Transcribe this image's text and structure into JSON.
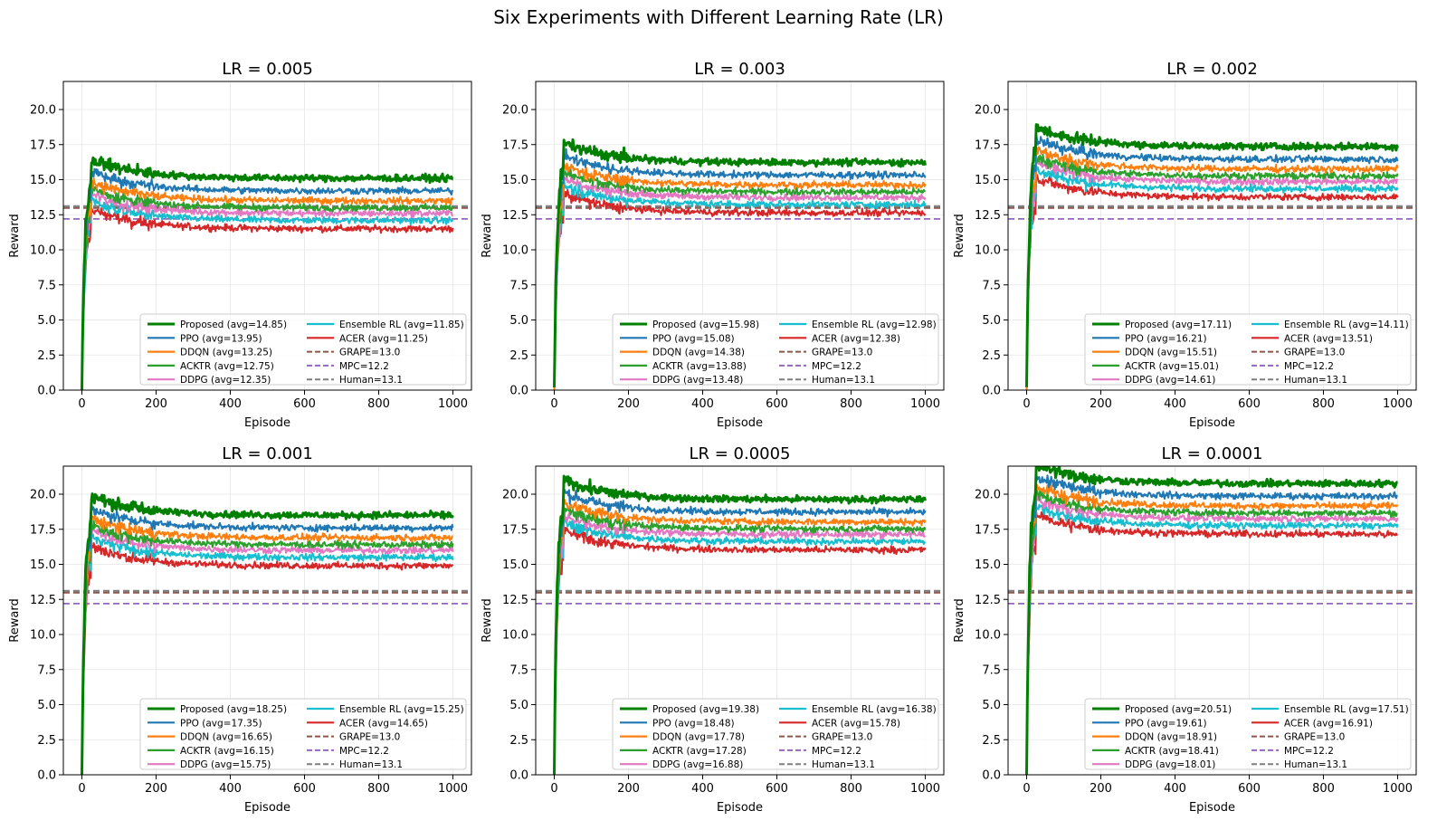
{
  "suptitle": "Six Experiments with Different Learning Rate (LR)",
  "colors": {
    "Proposed": "#008000",
    "PPO": "#1f77b4",
    "DDQN": "#ff7f0e",
    "ACKTR": "#2ca02c",
    "DDPG": "#e377c2",
    "Ensemble RL": "#17becf",
    "ACER": "#d62728",
    "GRAPE": "#8c564b",
    "MPC": "#9467bd",
    "Human": "#7f7f7f"
  },
  "chart_data": [
    {
      "type": "line",
      "title": "LR = 0.005",
      "xlabel": "Episode",
      "ylabel": "Reward",
      "xlim": [
        -50,
        1050
      ],
      "ylim": [
        0,
        22
      ],
      "xticks": [
        "0",
        "200",
        "400",
        "600",
        "800",
        "1000"
      ],
      "yticks": [
        "0.0",
        "2.5",
        "5.0",
        "7.5",
        "10.0",
        "12.5",
        "15.0",
        "17.5",
        "20.0"
      ],
      "grid": true,
      "legend_location": "lower-right",
      "series": [
        {
          "name": "Proposed",
          "label": "Proposed (avg=14.85)",
          "avg": 14.85
        },
        {
          "name": "PPO",
          "label": "PPO (avg=13.95)",
          "avg": 13.95
        },
        {
          "name": "DDQN",
          "label": "DDQN (avg=13.25)",
          "avg": 13.25
        },
        {
          "name": "ACKTR",
          "label": "ACKTR (avg=12.75)",
          "avg": 12.75
        },
        {
          "name": "DDPG",
          "label": "DDPG (avg=12.35)",
          "avg": 12.35
        },
        {
          "name": "Ensemble RL",
          "label": "Ensemble RL (avg=11.85)",
          "avg": 11.85
        },
        {
          "name": "ACER",
          "label": "ACER (avg=11.25)",
          "avg": 11.25
        }
      ],
      "baselines": [
        {
          "name": "GRAPE",
          "label": "GRAPE=13.0",
          "value": 13.0
        },
        {
          "name": "MPC",
          "label": "MPC=12.2",
          "value": 12.2
        },
        {
          "name": "Human",
          "label": "Human=13.1",
          "value": 13.1
        }
      ]
    },
    {
      "type": "line",
      "title": "LR = 0.003",
      "xlabel": "Episode",
      "ylabel": "Reward",
      "xlim": [
        -50,
        1050
      ],
      "ylim": [
        0,
        22
      ],
      "xticks": [
        "0",
        "200",
        "400",
        "600",
        "800",
        "1000"
      ],
      "yticks": [
        "0.0",
        "2.5",
        "5.0",
        "7.5",
        "10.0",
        "12.5",
        "15.0",
        "17.5",
        "20.0"
      ],
      "grid": true,
      "legend_location": "lower-right",
      "series": [
        {
          "name": "Proposed",
          "label": "Proposed (avg=15.98)",
          "avg": 15.98
        },
        {
          "name": "PPO",
          "label": "PPO (avg=15.08)",
          "avg": 15.08
        },
        {
          "name": "DDQN",
          "label": "DDQN (avg=14.38)",
          "avg": 14.38
        },
        {
          "name": "ACKTR",
          "label": "ACKTR (avg=13.88)",
          "avg": 13.88
        },
        {
          "name": "DDPG",
          "label": "DDPG (avg=13.48)",
          "avg": 13.48
        },
        {
          "name": "Ensemble RL",
          "label": "Ensemble RL (avg=12.98)",
          "avg": 12.98
        },
        {
          "name": "ACER",
          "label": "ACER (avg=12.38)",
          "avg": 12.38
        }
      ],
      "baselines": [
        {
          "name": "GRAPE",
          "label": "GRAPE=13.0",
          "value": 13.0
        },
        {
          "name": "MPC",
          "label": "MPC=12.2",
          "value": 12.2
        },
        {
          "name": "Human",
          "label": "Human=13.1",
          "value": 13.1
        }
      ]
    },
    {
      "type": "line",
      "title": "LR = 0.002",
      "xlabel": "Episode",
      "ylabel": "Reward",
      "xlim": [
        -50,
        1050
      ],
      "ylim": [
        0,
        22
      ],
      "xticks": [
        "0",
        "200",
        "400",
        "600",
        "800",
        "1000"
      ],
      "yticks": [
        "0.0",
        "2.5",
        "5.0",
        "7.5",
        "10.0",
        "12.5",
        "15.0",
        "17.5",
        "20.0"
      ],
      "grid": true,
      "legend_location": "lower-right",
      "series": [
        {
          "name": "Proposed",
          "label": "Proposed (avg=17.11)",
          "avg": 17.11
        },
        {
          "name": "PPO",
          "label": "PPO (avg=16.21)",
          "avg": 16.21
        },
        {
          "name": "DDQN",
          "label": "DDQN (avg=15.51)",
          "avg": 15.51
        },
        {
          "name": "ACKTR",
          "label": "ACKTR (avg=15.01)",
          "avg": 15.01
        },
        {
          "name": "DDPG",
          "label": "DDPG (avg=14.61)",
          "avg": 14.61
        },
        {
          "name": "Ensemble RL",
          "label": "Ensemble RL (avg=14.11)",
          "avg": 14.11
        },
        {
          "name": "ACER",
          "label": "ACER (avg=13.51)",
          "avg": 13.51
        }
      ],
      "baselines": [
        {
          "name": "GRAPE",
          "label": "GRAPE=13.0",
          "value": 13.0
        },
        {
          "name": "MPC",
          "label": "MPC=12.2",
          "value": 12.2
        },
        {
          "name": "Human",
          "label": "Human=13.1",
          "value": 13.1
        }
      ]
    },
    {
      "type": "line",
      "title": "LR = 0.001",
      "xlabel": "Episode",
      "ylabel": "Reward",
      "xlim": [
        -50,
        1050
      ],
      "ylim": [
        0,
        22
      ],
      "xticks": [
        "0",
        "200",
        "400",
        "600",
        "800",
        "1000"
      ],
      "yticks": [
        "0.0",
        "2.5",
        "5.0",
        "7.5",
        "10.0",
        "12.5",
        "15.0",
        "17.5",
        "20.0"
      ],
      "grid": true,
      "legend_location": "lower-right",
      "series": [
        {
          "name": "Proposed",
          "label": "Proposed (avg=18.25)",
          "avg": 18.25
        },
        {
          "name": "PPO",
          "label": "PPO (avg=17.35)",
          "avg": 17.35
        },
        {
          "name": "DDQN",
          "label": "DDQN (avg=16.65)",
          "avg": 16.65
        },
        {
          "name": "ACKTR",
          "label": "ACKTR (avg=16.15)",
          "avg": 16.15
        },
        {
          "name": "DDPG",
          "label": "DDPG (avg=15.75)",
          "avg": 15.75
        },
        {
          "name": "Ensemble RL",
          "label": "Ensemble RL (avg=15.25)",
          "avg": 15.25
        },
        {
          "name": "ACER",
          "label": "ACER (avg=14.65)",
          "avg": 14.65
        }
      ],
      "baselines": [
        {
          "name": "GRAPE",
          "label": "GRAPE=13.0",
          "value": 13.0
        },
        {
          "name": "MPC",
          "label": "MPC=12.2",
          "value": 12.2
        },
        {
          "name": "Human",
          "label": "Human=13.1",
          "value": 13.1
        }
      ]
    },
    {
      "type": "line",
      "title": "LR = 0.0005",
      "xlabel": "Episode",
      "ylabel": "Reward",
      "xlim": [
        -50,
        1050
      ],
      "ylim": [
        0,
        22
      ],
      "xticks": [
        "0",
        "200",
        "400",
        "600",
        "800",
        "1000"
      ],
      "yticks": [
        "0.0",
        "2.5",
        "5.0",
        "7.5",
        "10.0",
        "12.5",
        "15.0",
        "17.5",
        "20.0"
      ],
      "grid": true,
      "legend_location": "lower-right",
      "series": [
        {
          "name": "Proposed",
          "label": "Proposed (avg=19.38)",
          "avg": 19.38
        },
        {
          "name": "PPO",
          "label": "PPO (avg=18.48)",
          "avg": 18.48
        },
        {
          "name": "DDQN",
          "label": "DDQN (avg=17.78)",
          "avg": 17.78
        },
        {
          "name": "ACKTR",
          "label": "ACKTR (avg=17.28)",
          "avg": 17.28
        },
        {
          "name": "DDPG",
          "label": "DDPG (avg=16.88)",
          "avg": 16.88
        },
        {
          "name": "Ensemble RL",
          "label": "Ensemble RL (avg=16.38)",
          "avg": 16.38
        },
        {
          "name": "ACER",
          "label": "ACER (avg=15.78)",
          "avg": 15.78
        }
      ],
      "baselines": [
        {
          "name": "GRAPE",
          "label": "GRAPE=13.0",
          "value": 13.0
        },
        {
          "name": "MPC",
          "label": "MPC=12.2",
          "value": 12.2
        },
        {
          "name": "Human",
          "label": "Human=13.1",
          "value": 13.1
        }
      ]
    },
    {
      "type": "line",
      "title": "LR = 0.0001",
      "xlabel": "Episode",
      "ylabel": "Reward",
      "xlim": [
        -50,
        1050
      ],
      "ylim": [
        0,
        22
      ],
      "xticks": [
        "0",
        "200",
        "400",
        "600",
        "800",
        "1000"
      ],
      "yticks": [
        "0.0",
        "2.5",
        "5.0",
        "7.5",
        "10.0",
        "12.5",
        "15.0",
        "17.5",
        "20.0"
      ],
      "grid": true,
      "legend_location": "lower-right",
      "series": [
        {
          "name": "Proposed",
          "label": "Proposed (avg=20.51)",
          "avg": 20.51
        },
        {
          "name": "PPO",
          "label": "PPO (avg=19.61)",
          "avg": 19.61
        },
        {
          "name": "DDQN",
          "label": "DDQN (avg=18.91)",
          "avg": 18.91
        },
        {
          "name": "ACKTR",
          "label": "ACKTR (avg=18.41)",
          "avg": 18.41
        },
        {
          "name": "DDPG",
          "label": "DDPG (avg=18.01)",
          "avg": 18.01
        },
        {
          "name": "Ensemble RL",
          "label": "Ensemble RL (avg=17.51)",
          "avg": 17.51
        },
        {
          "name": "ACER",
          "label": "ACER (avg=16.91)",
          "avg": 16.91
        }
      ],
      "baselines": [
        {
          "name": "GRAPE",
          "label": "GRAPE=13.0",
          "value": 13.0
        },
        {
          "name": "MPC",
          "label": "MPC=12.2",
          "value": 12.2
        },
        {
          "name": "Human",
          "label": "Human=13.1",
          "value": 13.1
        }
      ]
    }
  ]
}
